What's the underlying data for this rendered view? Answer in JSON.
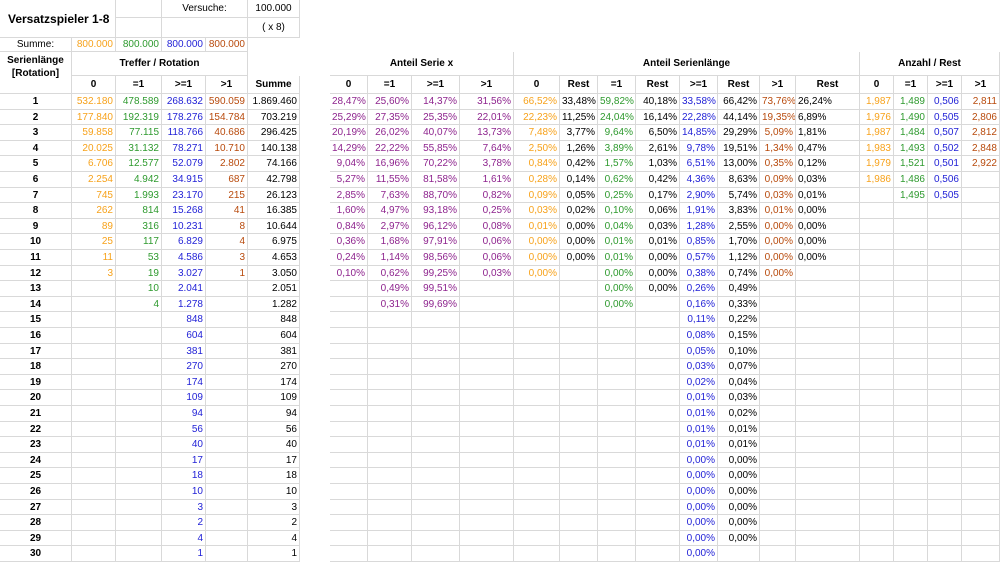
{
  "sheet": {
    "title": "Versatzspieler 1-8",
    "versuche_label": "Versuche:",
    "versuche_value": "100.000",
    "multiplier": "( x 8)",
    "summe_label": "Summe:",
    "summe_values": [
      "800.000",
      "800.000",
      "800.000",
      "800.000"
    ],
    "serienlaenge_label": "Serienlänge",
    "rotation_label": "[Rotation]"
  },
  "sections": {
    "treffer": "Treffer / Rotation",
    "anteil_serie": "Anteil Serie x",
    "anteil_serienlaenge": "Anteil Serienlänge",
    "anzahl_rest": "Anzahl / Rest"
  },
  "headers": {
    "treffer": [
      "0",
      "=1",
      ">=1",
      ">1",
      "Summe"
    ],
    "anteil_serie": [
      "0",
      "=1",
      ">=1",
      ">1"
    ],
    "anteil_serienlaenge": [
      "0",
      "Rest",
      "=1",
      "Rest",
      ">=1",
      "Rest",
      ">1",
      "Rest"
    ],
    "anzahl": [
      "0",
      "=1",
      ">=1",
      ">1"
    ]
  },
  "rows": [
    [
      "1",
      "532.180",
      "478.589",
      "268.632",
      "590.059",
      "1.869.460",
      "28,47%",
      "25,60%",
      "14,37%",
      "31,56%",
      "66,52%",
      "33,48%",
      "59,82%",
      "40,18%",
      "33,58%",
      "66,42%",
      "73,76%",
      "26,24%",
      "1,987",
      "1,489",
      "0,506",
      "2,811"
    ],
    [
      "2",
      "177.840",
      "192.319",
      "178.276",
      "154.784",
      "703.219",
      "25,29%",
      "27,35%",
      "25,35%",
      "22,01%",
      "22,23%",
      "11,25%",
      "24,04%",
      "16,14%",
      "22,28%",
      "44,14%",
      "19,35%",
      "6,89%",
      "1,976",
      "1,490",
      "0,505",
      "2,806"
    ],
    [
      "3",
      "59.858",
      "77.115",
      "118.766",
      "40.686",
      "296.425",
      "20,19%",
      "26,02%",
      "40,07%",
      "13,73%",
      "7,48%",
      "3,77%",
      "9,64%",
      "6,50%",
      "14,85%",
      "29,29%",
      "5,09%",
      "1,81%",
      "1,987",
      "1,484",
      "0,507",
      "2,812"
    ],
    [
      "4",
      "20.025",
      "31.132",
      "78.271",
      "10.710",
      "140.138",
      "14,29%",
      "22,22%",
      "55,85%",
      "7,64%",
      "2,50%",
      "1,26%",
      "3,89%",
      "2,61%",
      "9,78%",
      "19,51%",
      "1,34%",
      "0,47%",
      "1,983",
      "1,493",
      "0,502",
      "2,848"
    ],
    [
      "5",
      "6.706",
      "12.577",
      "52.079",
      "2.802",
      "74.166",
      "9,04%",
      "16,96%",
      "70,22%",
      "3,78%",
      "0,84%",
      "0,42%",
      "1,57%",
      "1,03%",
      "6,51%",
      "13,00%",
      "0,35%",
      "0,12%",
      "1,979",
      "1,521",
      "0,501",
      "2,922"
    ],
    [
      "6",
      "2.254",
      "4.942",
      "34.915",
      "687",
      "42.798",
      "5,27%",
      "11,55%",
      "81,58%",
      "1,61%",
      "0,28%",
      "0,14%",
      "0,62%",
      "0,42%",
      "4,36%",
      "8,63%",
      "0,09%",
      "0,03%",
      "1,986",
      "1,486",
      "0,506",
      ""
    ],
    [
      "7",
      "745",
      "1.993",
      "23.170",
      "215",
      "26.123",
      "2,85%",
      "7,63%",
      "88,70%",
      "0,82%",
      "0,09%",
      "0,05%",
      "0,25%",
      "0,17%",
      "2,90%",
      "5,74%",
      "0,03%",
      "0,01%",
      "",
      "1,495",
      "0,505",
      ""
    ],
    [
      "8",
      "262",
      "814",
      "15.268",
      "41",
      "16.385",
      "1,60%",
      "4,97%",
      "93,18%",
      "0,25%",
      "0,03%",
      "0,02%",
      "0,10%",
      "0,06%",
      "1,91%",
      "3,83%",
      "0,01%",
      "0,00%",
      "",
      "",
      "",
      ""
    ],
    [
      "9",
      "89",
      "316",
      "10.231",
      "8",
      "10.644",
      "0,84%",
      "2,97%",
      "96,12%",
      "0,08%",
      "0,01%",
      "0,00%",
      "0,04%",
      "0,03%",
      "1,28%",
      "2,55%",
      "0,00%",
      "0,00%",
      "",
      "",
      "",
      ""
    ],
    [
      "10",
      "25",
      "117",
      "6.829",
      "4",
      "6.975",
      "0,36%",
      "1,68%",
      "97,91%",
      "0,06%",
      "0,00%",
      "0,00%",
      "0,01%",
      "0,01%",
      "0,85%",
      "1,70%",
      "0,00%",
      "0,00%",
      "",
      "",
      "",
      ""
    ],
    [
      "11",
      "11",
      "53",
      "4.586",
      "3",
      "4.653",
      "0,24%",
      "1,14%",
      "98,56%",
      "0,06%",
      "0,00%",
      "0,00%",
      "0,01%",
      "0,00%",
      "0,57%",
      "1,12%",
      "0,00%",
      "0,00%",
      "",
      "",
      "",
      ""
    ],
    [
      "12",
      "3",
      "19",
      "3.027",
      "1",
      "3.050",
      "0,10%",
      "0,62%",
      "99,25%",
      "0,03%",
      "0,00%",
      "",
      "0,00%",
      "0,00%",
      "0,38%",
      "0,74%",
      "0,00%",
      "",
      "",
      "",
      "",
      ""
    ],
    [
      "13",
      "",
      "10",
      "2.041",
      "",
      "2.051",
      "",
      "0,49%",
      "99,51%",
      "",
      "",
      "",
      "0,00%",
      "0,00%",
      "0,26%",
      "0,49%",
      "",
      "",
      "",
      "",
      "",
      ""
    ],
    [
      "14",
      "",
      "4",
      "1.278",
      "",
      "1.282",
      "",
      "0,31%",
      "99,69%",
      "",
      "",
      "",
      "0,00%",
      "",
      "0,16%",
      "0,33%",
      "",
      "",
      "",
      "",
      "",
      ""
    ],
    [
      "15",
      "",
      "",
      "848",
      "",
      "848",
      "",
      "",
      "",
      "",
      "",
      "",
      "",
      "",
      "0,11%",
      "0,22%",
      "",
      "",
      "",
      "",
      "",
      ""
    ],
    [
      "16",
      "",
      "",
      "604",
      "",
      "604",
      "",
      "",
      "",
      "",
      "",
      "",
      "",
      "",
      "0,08%",
      "0,15%",
      "",
      "",
      "",
      "",
      "",
      ""
    ],
    [
      "17",
      "",
      "",
      "381",
      "",
      "381",
      "",
      "",
      "",
      "",
      "",
      "",
      "",
      "",
      "0,05%",
      "0,10%",
      "",
      "",
      "",
      "",
      "",
      ""
    ],
    [
      "18",
      "",
      "",
      "270",
      "",
      "270",
      "",
      "",
      "",
      "",
      "",
      "",
      "",
      "",
      "0,03%",
      "0,07%",
      "",
      "",
      "",
      "",
      "",
      ""
    ],
    [
      "19",
      "",
      "",
      "174",
      "",
      "174",
      "",
      "",
      "",
      "",
      "",
      "",
      "",
      "",
      "0,02%",
      "0,04%",
      "",
      "",
      "",
      "",
      "",
      ""
    ],
    [
      "20",
      "",
      "",
      "109",
      "",
      "109",
      "",
      "",
      "",
      "",
      "",
      "",
      "",
      "",
      "0,01%",
      "0,03%",
      "",
      "",
      "",
      "",
      "",
      ""
    ],
    [
      "21",
      "",
      "",
      "94",
      "",
      "94",
      "",
      "",
      "",
      "",
      "",
      "",
      "",
      "",
      "0,01%",
      "0,02%",
      "",
      "",
      "",
      "",
      "",
      ""
    ],
    [
      "22",
      "",
      "",
      "56",
      "",
      "56",
      "",
      "",
      "",
      "",
      "",
      "",
      "",
      "",
      "0,01%",
      "0,01%",
      "",
      "",
      "",
      "",
      "",
      ""
    ],
    [
      "23",
      "",
      "",
      "40",
      "",
      "40",
      "",
      "",
      "",
      "",
      "",
      "",
      "",
      "",
      "0,01%",
      "0,01%",
      "",
      "",
      "",
      "",
      "",
      ""
    ],
    [
      "24",
      "",
      "",
      "17",
      "",
      "17",
      "",
      "",
      "",
      "",
      "",
      "",
      "",
      "",
      "0,00%",
      "0,00%",
      "",
      "",
      "",
      "",
      "",
      ""
    ],
    [
      "25",
      "",
      "",
      "18",
      "",
      "18",
      "",
      "",
      "",
      "",
      "",
      "",
      "",
      "",
      "0,00%",
      "0,00%",
      "",
      "",
      "",
      "",
      "",
      ""
    ],
    [
      "26",
      "",
      "",
      "10",
      "",
      "10",
      "",
      "",
      "",
      "",
      "",
      "",
      "",
      "",
      "0,00%",
      "0,00%",
      "",
      "",
      "",
      "",
      "",
      ""
    ],
    [
      "27",
      "",
      "",
      "3",
      "",
      "3",
      "",
      "",
      "",
      "",
      "",
      "",
      "",
      "",
      "0,00%",
      "0,00%",
      "",
      "",
      "",
      "",
      "",
      ""
    ],
    [
      "28",
      "",
      "",
      "2",
      "",
      "2",
      "",
      "",
      "",
      "",
      "",
      "",
      "",
      "",
      "0,00%",
      "0,00%",
      "",
      "",
      "",
      "",
      "",
      ""
    ],
    [
      "29",
      "",
      "",
      "4",
      "",
      "4",
      "",
      "",
      "",
      "",
      "",
      "",
      "",
      "",
      "0,00%",
      "0,00%",
      "",
      "",
      "",
      "",
      "",
      ""
    ],
    [
      "30",
      "",
      "",
      "1",
      "",
      "1",
      "",
      "",
      "",
      "",
      "",
      "",
      "",
      "",
      "0,00%",
      "",
      "",
      "",
      "",
      "",
      "",
      ""
    ]
  ],
  "colors": {
    "orange": "#f7a21b",
    "green": "#2e9a2e",
    "blue": "#1f1fd6",
    "brown": "#b84a0c",
    "purple": "#8e248e",
    "grid": "#d9d9d9"
  }
}
